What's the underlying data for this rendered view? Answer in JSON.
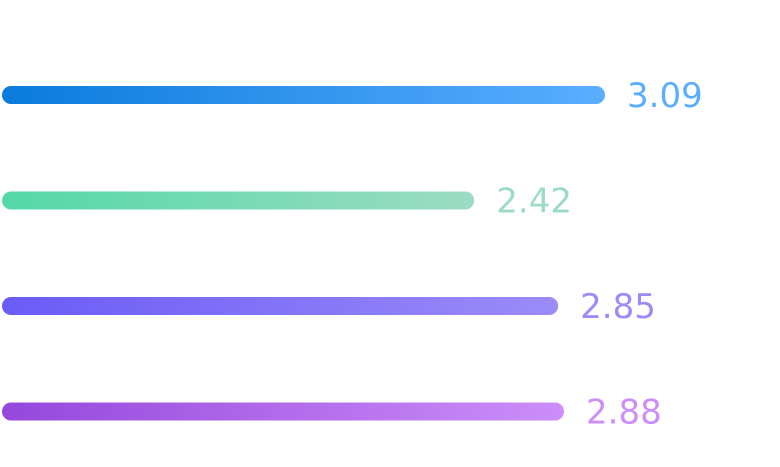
{
  "chart_data": {
    "type": "bar",
    "orientation": "horizontal",
    "title": "",
    "xlabel": "",
    "ylabel": "",
    "grid": false,
    "legend": "none",
    "xlim": [
      0,
      3.09
    ],
    "values": [
      3.09,
      2.42,
      2.85,
      2.88
    ],
    "value_labels": [
      "3.09",
      "2.42",
      "2.85",
      "2.88"
    ],
    "colors": [
      {
        "start": "#0a7bdc",
        "end": "#5aaeff",
        "label": "#5aaeff"
      },
      {
        "start": "#54d8a8",
        "end": "#9cdcc4",
        "label": "#9cdcc4"
      },
      {
        "start": "#6a5cf6",
        "end": "#9b8cf8",
        "label": "#9b8cf8"
      },
      {
        "start": "#9548dc",
        "end": "#cc8ef9",
        "label": "#cc8ef9"
      }
    ]
  }
}
